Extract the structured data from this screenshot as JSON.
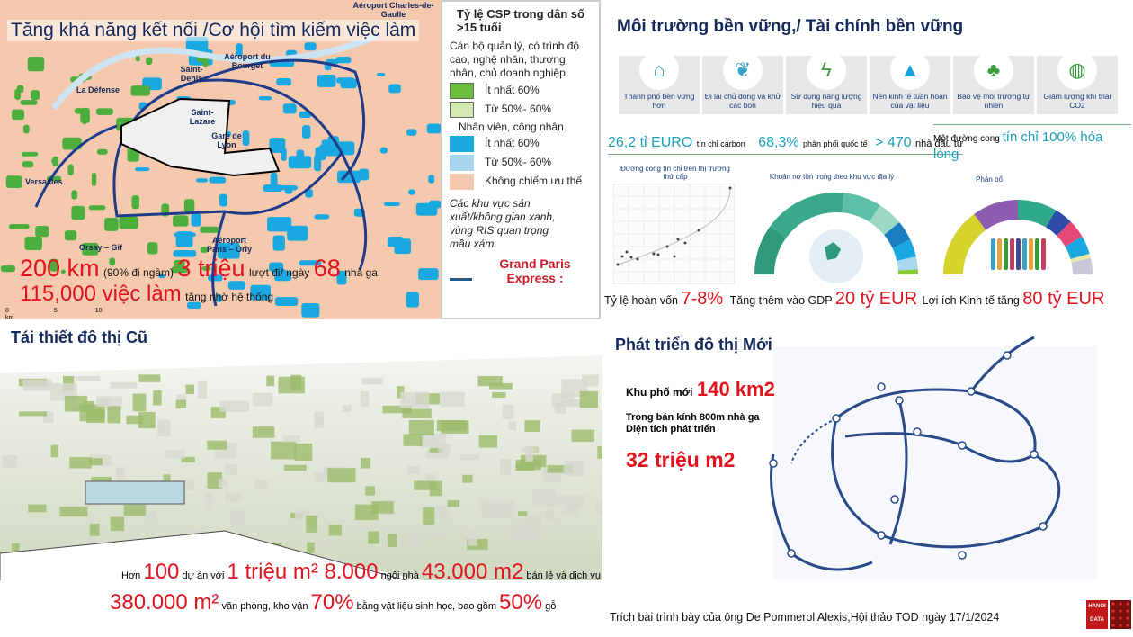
{
  "connectivity": {
    "title": "Tăng khả năng kết nối /Cơ hội tìm kiếm việc làm",
    "map_labels": [
      "Aéroport Charles-de-Gaulle",
      "Aéroport du Bourget",
      "Saint-Denis",
      "La Défense",
      "Saint-Lazare",
      "Gare de Lyon",
      "Versailles",
      "Orsay – Gif",
      "Aéroport Paris – Orly"
    ],
    "scale": [
      "0",
      "5",
      "10 km"
    ],
    "stats": {
      "km": "200 km",
      "underground": "(90% đi ngầm)",
      "trips": "3 triệu",
      "trips_label": "lượt đi/ ngày",
      "stations": "68",
      "stations_label": "nhà ga",
      "jobs": "115,000 việc làm",
      "jobs_label": "tăng nhờ hệ thống"
    }
  },
  "legend": {
    "title": "Tỷ lệ CSP trong dân số >15 tuổi",
    "group1": "Cán bộ quản lý, có trình độ cao, nghệ nhân, thương nhân, chủ doanh nghiệp",
    "g1_items": [
      {
        "label": "Ít nhất 60%",
        "color": "#6cbf3c"
      },
      {
        "label": "Từ 50%- 60%",
        "color": "#d4e8b4"
      }
    ],
    "group2": "Nhân viên, công nhân",
    "g2_items": [
      {
        "label": "Ít nhất 60%",
        "color": "#1aa8e0"
      },
      {
        "label": "Từ 50%- 60%",
        "color": "#a8d4f0"
      }
    ],
    "none_item": {
      "label": "Không chiếm ưu thế",
      "color": "#f4c9ad"
    },
    "note": "Các khu vực sản xuất/không gian xanh, vùng RIS quan trọng mầu xám",
    "line_label": "Grand Paris Express :"
  },
  "sustainable": {
    "title": "Môi trường bền vững,/ Tài chính bền vững",
    "tiles": [
      {
        "label": "Thành phố bền vững hơn",
        "icon": "solar-city-icon"
      },
      {
        "label": "Đi lại chủ động và khử các bon",
        "icon": "hands-leaf-icon"
      },
      {
        "label": "Sử dụng năng lượng hiệu quả",
        "icon": "energy-bolt-icon"
      },
      {
        "label": "Nền kinh tế tuần hoàn của vật liệu",
        "icon": "mountains-icon"
      },
      {
        "label": "Bảo vệ môi trường tự nhiên",
        "icon": "trees-icon"
      },
      {
        "label": "Giảm lượng khí thải CO2",
        "icon": "globe-co2-icon"
      }
    ],
    "carbon_value": "26,2 tỉ EURO",
    "carbon_label": "tín chỉ carbon",
    "intl_value": "68,3%",
    "intl_label": "phân phối quốc tế",
    "investors_value": "> 470",
    "investors_label": "nhà đầu tư",
    "curve_prefix": "Một đường cong",
    "curve_value": "tín chỉ 100% hóa lỏng",
    "chart1_title": "Đường cong tín chỉ trên thị trường thứ cấp",
    "chart2_title": "Khoản nợ tồn trong theo khu vực địa lý",
    "chart3_title": "Phân bổ",
    "gauge2_colors": [
      "#2e9a7a",
      "#3aa88a",
      "#5cc0a8",
      "#9cd8c4",
      "#1a7fc0",
      "#1aa8e0",
      "#a8d8f0",
      "#8cc83c"
    ],
    "gauge3_colors": [
      "#d4d42c",
      "#8c5cb0",
      "#2eaa8a",
      "#2c4aa8",
      "#e84878",
      "#1aa8e0",
      "#e8e8a8",
      "#c8c8d8"
    ],
    "roi_label": "Tỷ lệ hoàn vốn",
    "roi_value": "7-8%",
    "gdp_label": "Tăng thêm vào GDP",
    "gdp_value": "20 tỷ EUR",
    "benefit_label": "Lợi ích Kinh tế tăng",
    "benefit_value": "80 tỷ EUR"
  },
  "renewal": {
    "title": "Tái thiết đô thị Cũ",
    "line1": [
      {
        "t": "Hơn ",
        "r": false
      },
      {
        "t": "100",
        "r": true
      },
      {
        "t": " dự án  với ",
        "r": false
      },
      {
        "t": "1 triệu m²",
        "r": true
      },
      {
        "t": " 8.000",
        "r": true
      },
      {
        "t": " ngôi nhà ",
        "r": false
      },
      {
        "t": "43.000 m2",
        "r": true
      },
      {
        "t": " bán lẻ và dịch vụ",
        "r": false
      }
    ],
    "line2": [
      {
        "t": "380.000 m²",
        "r": true
      },
      {
        "t": " văn phòng, kho vận ",
        "r": false
      },
      {
        "t": "70%",
        "r": true
      },
      {
        "t": " bằng vật liệu sinh học, bao gồm ",
        "r": false
      },
      {
        "t": "50%",
        "r": true
      },
      {
        "t": " gỗ",
        "r": false
      }
    ]
  },
  "newdev": {
    "title": "Phát triển đô thị Mới",
    "district_label": "Khu phố mới",
    "district_value": "140 km2",
    "radius_label": "Trong bán kính 800m nhà ga",
    "area_label": "Diện tích phát triển",
    "area_value": "32 triệu m2",
    "network_color": "#2a4a8a"
  },
  "footer": {
    "credit": "Trích bài trình bày  của ông De Pommerol Alexis,Hội thảo TOD ngày 17/1/2024",
    "logo": "HANOI DATA"
  }
}
